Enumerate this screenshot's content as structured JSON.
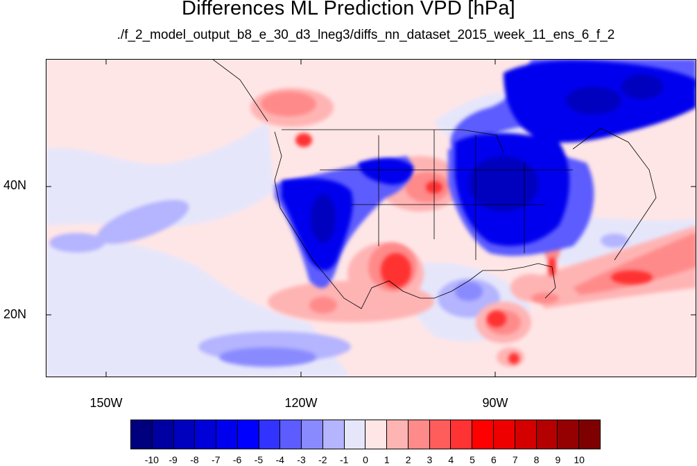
{
  "title": "Differences ML Prediction VPD [hPa]",
  "subtitle": "./f_2_model_output_b8_e_30_d3_lneg3/diffs_nn_dataset_2015_week_11_ens_6_f_2",
  "map": {
    "lat_labels": [
      "40N",
      "20N"
    ],
    "lon_labels": [
      "150W",
      "120W",
      "90W"
    ]
  },
  "colorbar": {
    "labels": [
      "-10",
      "-9",
      "-8",
      "-7",
      "-6",
      "-5",
      "-4",
      "-3",
      "-2",
      "-1",
      "0",
      "1",
      "2",
      "3",
      "4",
      "5",
      "6",
      "7",
      "8",
      "9",
      "10"
    ],
    "colors": [
      "#00007f",
      "#0000a2",
      "#0000bf",
      "#0000d9",
      "#0000ee",
      "#0000ff",
      "#3333ff",
      "#5c5cff",
      "#8a8aff",
      "#b4b4ff",
      "#e6e6fb",
      "#ffe6e6",
      "#ffb4b4",
      "#ff8a8a",
      "#ff5c5c",
      "#ff3333",
      "#ff0000",
      "#ee0000",
      "#d40000",
      "#b40000",
      "#950000",
      "#7f0000"
    ]
  }
}
